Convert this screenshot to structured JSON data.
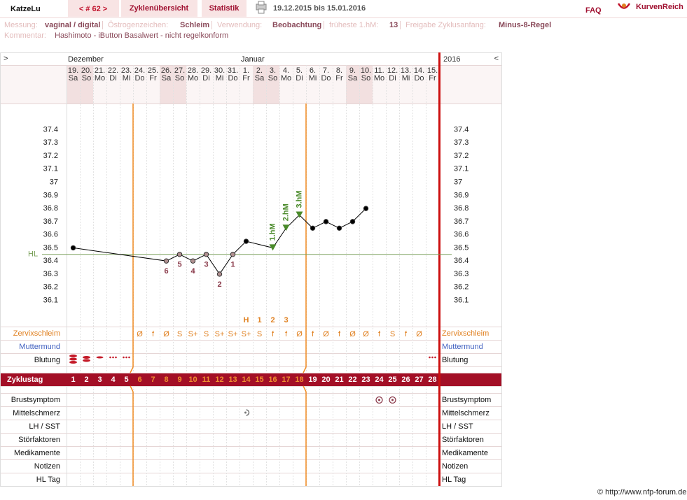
{
  "header": {
    "user": "KatzeLu",
    "cycle": "< # 62 >",
    "tabs": [
      "Zyklenübersicht",
      "Statistik"
    ],
    "date_range": "19.12.2015 bis 15.01.2016",
    "faq": "FAQ",
    "brand": "KurvenReich"
  },
  "info": {
    "fields": [
      {
        "label": "Messung:",
        "value": "vaginal / digital"
      },
      {
        "label": "Östrogenzeichen:",
        "value": "Schleim"
      },
      {
        "label": "Verwendung:",
        "value": "Beobachtung"
      },
      {
        "label": "früheste 1.hM:",
        "value": "13"
      },
      {
        "label": "Freigabe Zyklusanfang:",
        "value": "Minus-8-Regel"
      }
    ],
    "comment": {
      "label": "Kommentar:",
      "value": "Hashimoto - iButton Basalwert - nicht regelkonform"
    }
  },
  "chart_data": {
    "type": "line",
    "nav_prev": ">",
    "nav_next": "<",
    "year": "2016",
    "months": [
      "Dezember",
      null,
      null,
      null,
      null,
      null,
      null,
      null,
      null,
      null,
      null,
      null,
      null,
      "Januar",
      null,
      null,
      null,
      null,
      null,
      null,
      null,
      null,
      null,
      null,
      null,
      null,
      null,
      null
    ],
    "dates": [
      "19.",
      "20.",
      "21.",
      "22.",
      "23.",
      "24.",
      "25.",
      "26.",
      "27.",
      "28.",
      "29.",
      "30.",
      "31.",
      "1.",
      "2.",
      "3.",
      "4.",
      "5.",
      "6.",
      "7.",
      "8.",
      "9.",
      "10.",
      "11.",
      "12.",
      "13.",
      "14.",
      "15."
    ],
    "weekdays": [
      "Sa",
      "So",
      "Mo",
      "Di",
      "Mi",
      "Do",
      "Fr",
      "Sa",
      "So",
      "Mo",
      "Di",
      "Mi",
      "Do",
      "Fr",
      "Sa",
      "So",
      "Mo",
      "Di",
      "Mi",
      "Do",
      "Fr",
      "Sa",
      "So",
      "Mo",
      "Di",
      "Mi",
      "Do",
      "Fr"
    ],
    "xlabel": "Zyklustag",
    "xlim": [
      0.5,
      28.5
    ],
    "xticks": [
      1,
      2,
      3,
      4,
      5,
      6,
      7,
      8,
      9,
      10,
      11,
      12,
      13,
      14,
      15,
      16,
      17,
      18,
      19,
      20,
      21,
      22,
      23,
      24,
      25,
      26,
      27,
      28
    ],
    "ylim": [
      35.9,
      37.6
    ],
    "yticks": [
      36.1,
      36.2,
      36.3,
      36.4,
      36.5,
      36.6,
      36.7,
      36.8,
      36.9,
      37,
      37.1,
      37.2,
      37.3,
      37.4
    ],
    "x": [
      1,
      8,
      9,
      10,
      11,
      12,
      13,
      14,
      16,
      17,
      18,
      19,
      20,
      21,
      22,
      23
    ],
    "values": [
      36.5,
      36.4,
      36.45,
      36.4,
      36.45,
      36.3,
      36.45,
      36.55,
      36.5,
      36.65,
      36.75,
      36.65,
      36.7,
      36.65,
      36.7,
      36.8
    ],
    "low_labels": [
      null,
      "6",
      "5",
      "4",
      "3",
      "2",
      "1",
      null,
      null,
      null,
      null,
      null,
      null,
      null,
      null,
      null
    ],
    "high_labels": [
      null,
      null,
      null,
      null,
      null,
      null,
      null,
      null,
      "1.hM",
      "2.hM",
      "3.hM",
      null,
      null,
      null,
      null,
      null
    ],
    "color": "#000000",
    "high_color": "#4a8a2a",
    "coverline": {
      "value": 36.45,
      "label": "HL",
      "color": "#7aa05a"
    },
    "peak_marks": [
      null,
      null,
      null,
      null,
      null,
      null,
      null,
      null,
      null,
      null,
      null,
      null,
      null,
      "H",
      "1",
      "2",
      "3",
      null,
      null,
      null,
      null,
      null,
      null,
      null,
      null,
      null,
      null,
      null
    ],
    "cervix": {
      "label": "Zervixschleim",
      "values": [
        null,
        null,
        null,
        null,
        null,
        "Ø",
        "f",
        "Ø",
        "S",
        "S+",
        "S",
        "S+",
        "S+",
        "S+",
        "S",
        "f",
        "f",
        "Ø",
        "f",
        "Ø",
        "f",
        "Ø",
        "Ø",
        "f",
        "S",
        "f",
        "Ø",
        null
      ]
    },
    "cervix_pos_label": "Muttermund",
    "bleeding_label": "Blutung",
    "lower_rows": [
      "Brustsymptom",
      "Mittelschmerz",
      "LH / SST",
      "Störfaktoren",
      "Medikamente",
      "Notizen",
      "HL Tag"
    ]
  },
  "credit": "© http://www.nfp-forum.de"
}
